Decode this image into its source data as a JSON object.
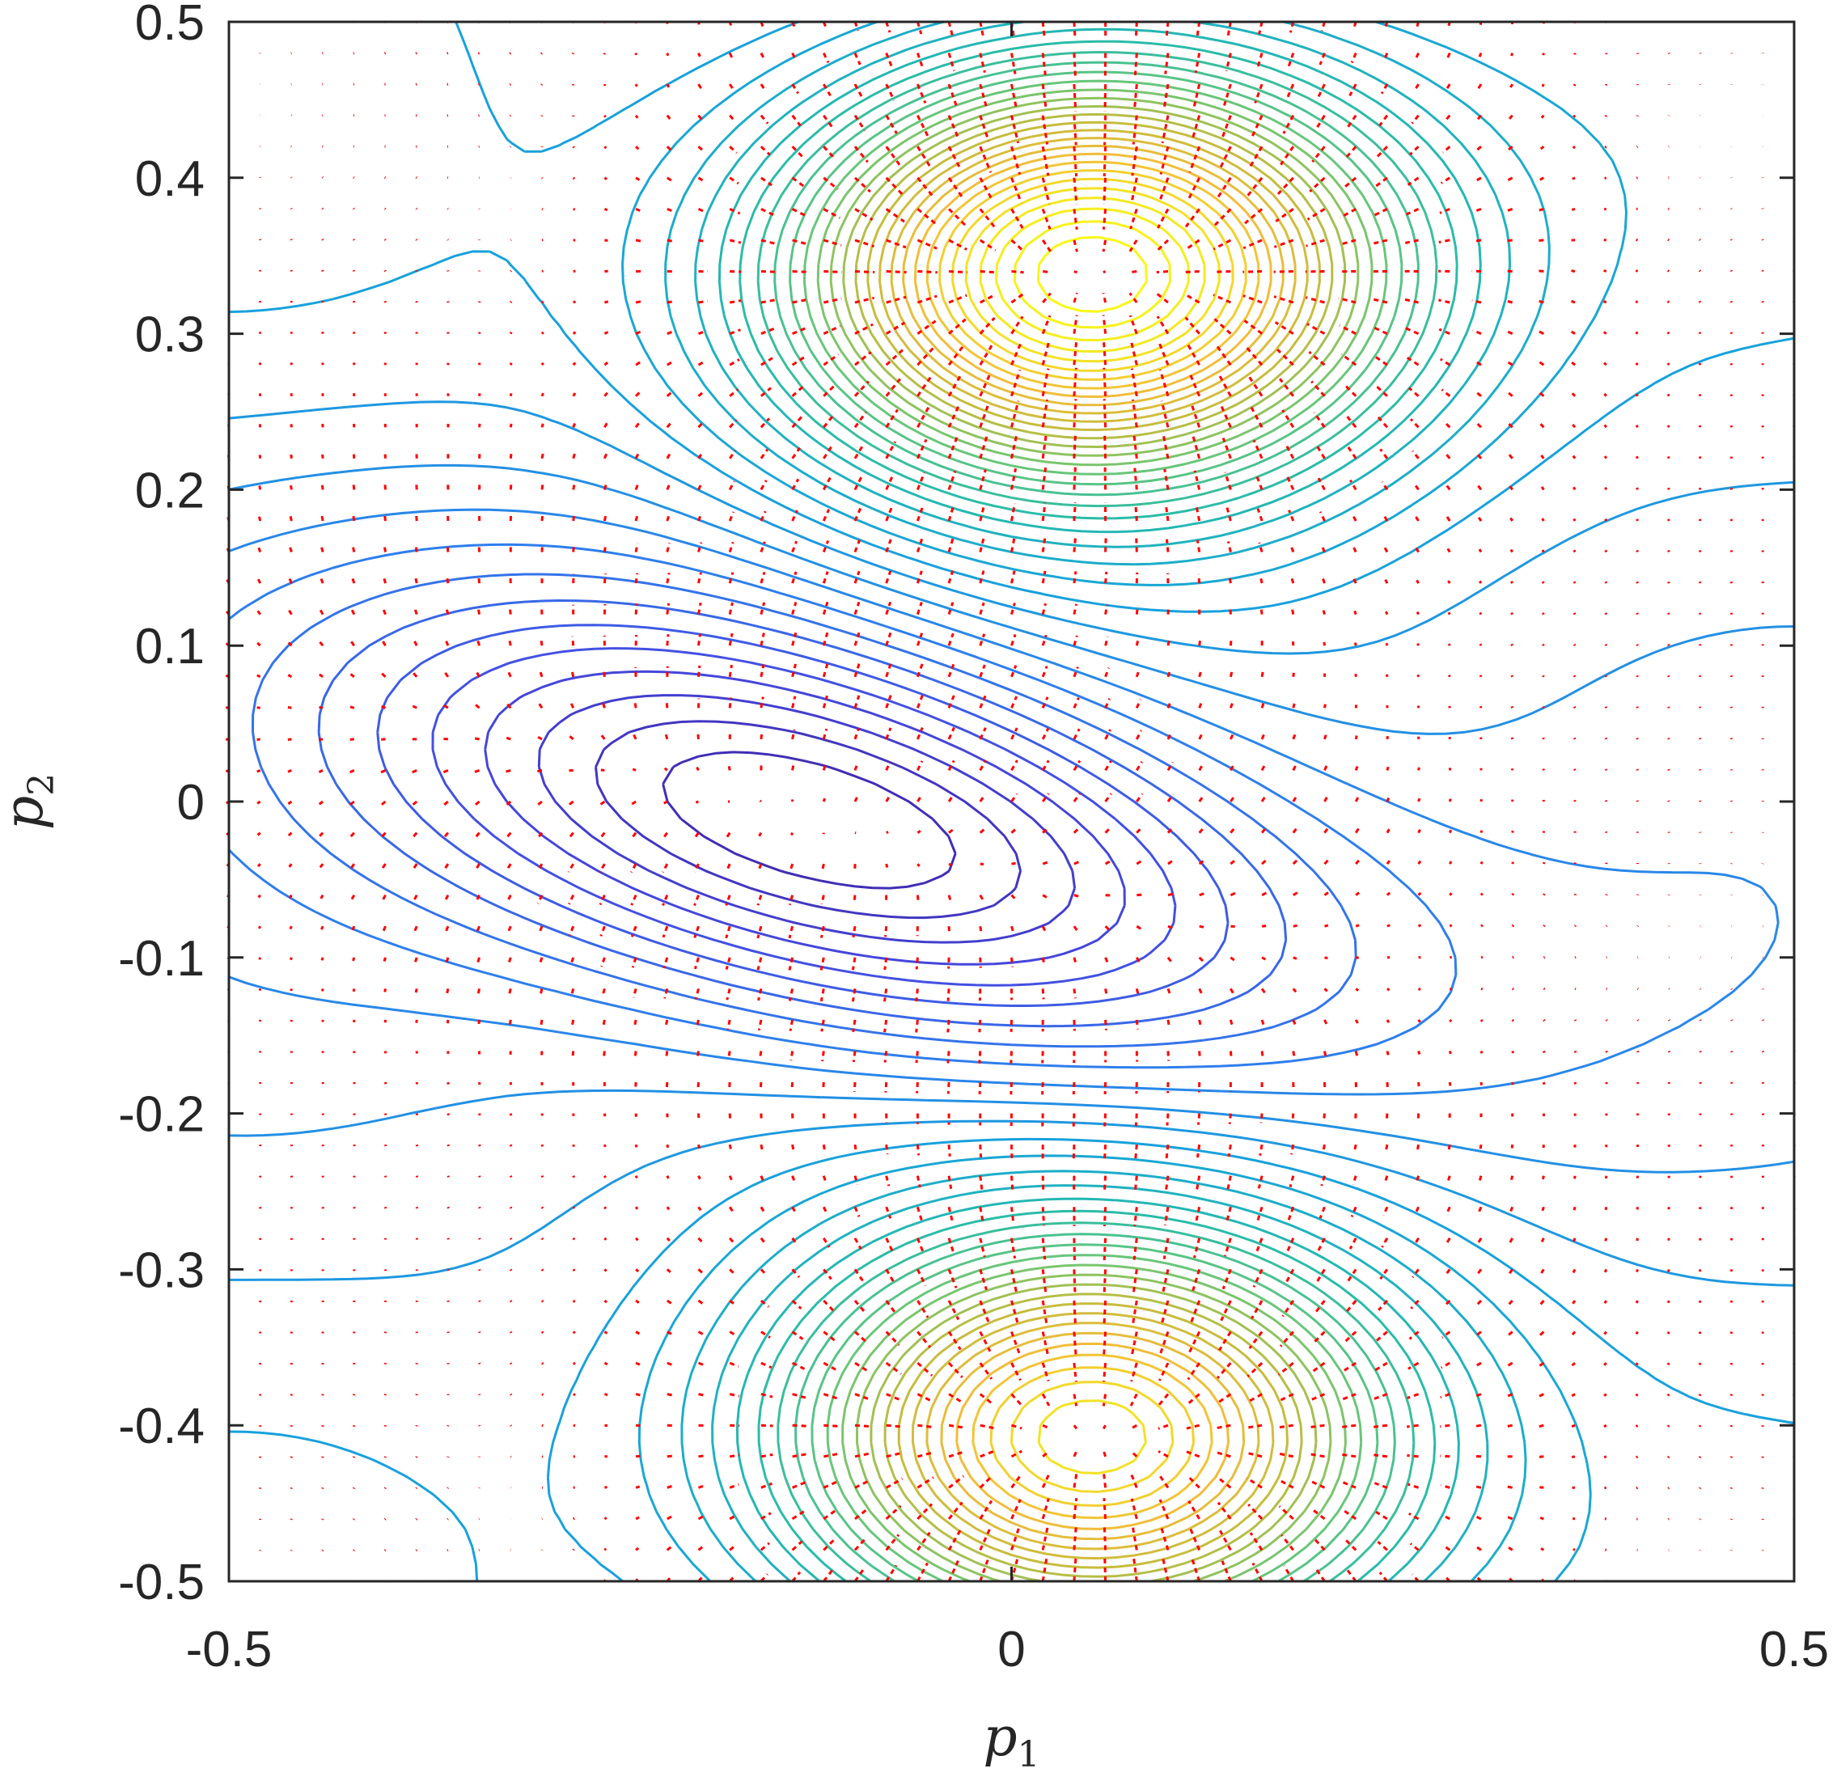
{
  "chart_data": {
    "type": "contour",
    "overlay": "quiver",
    "title": "",
    "xlabel": "p",
    "xlabel_subscript": "1",
    "ylabel": "p",
    "ylabel_subscript": "2",
    "xlim": [
      -0.5,
      0.5
    ],
    "ylim": [
      -0.5,
      0.5
    ],
    "xticks": [
      -0.5,
      0,
      0.5
    ],
    "xtick_labels": [
      "-0.5",
      "0",
      "0.5"
    ],
    "yticks": [
      0.5,
      0.4,
      0.3,
      0.2,
      0.1,
      0,
      -0.1,
      -0.2,
      -0.3,
      -0.4,
      -0.5
    ],
    "ytick_labels": [
      "0.5",
      "0.4",
      "0.3",
      "0.2",
      "0.1",
      "0",
      "-0.1",
      "-0.2",
      "-0.3",
      "-0.4",
      "-0.5"
    ],
    "grid": false,
    "box": true,
    "colormap": [
      "#3e26a8",
      "#4649e0",
      "#2f7ded",
      "#16a4db",
      "#27bbac",
      "#6bc777",
      "#c3bc3d",
      "#f2bd3a",
      "#f3e723",
      "#f9fb15"
    ],
    "arrow_color": "#ff0000",
    "features": [
      {
        "kind": "maximum",
        "x": 0.05,
        "y": 0.34,
        "amplitude": 1.0
      },
      {
        "kind": "maximum",
        "x": 0.05,
        "y": -0.41,
        "amplitude": 0.85
      },
      {
        "kind": "minimum",
        "x": -0.1,
        "y": -0.02,
        "amplitude": -0.9
      }
    ],
    "contour_levels": 40,
    "quiver_grid": {
      "x_step": 0.02,
      "y_step": 0.02
    }
  }
}
